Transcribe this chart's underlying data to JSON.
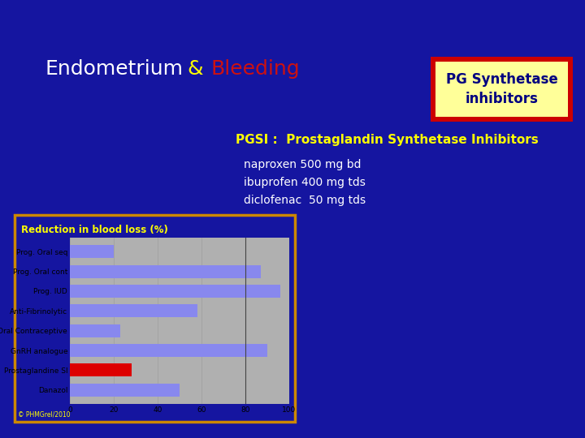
{
  "bg_color": "#1515a0",
  "title_endometrium": "Endometrium",
  "title_and": "&",
  "title_bleeding": "Bleeding",
  "title_color_endometrium": "#ffffff",
  "title_color_and": "#ffff00",
  "title_color_bleeding": "#cc1111",
  "pgsi_label": "PGSI :  Prostaglandin Synthetase Inhibitors",
  "pgsi_color": "#ffff00",
  "drugs_text": "naproxen 500 mg bd\nibuprofen 400 mg tds\ndiclofenac  50 mg tds",
  "drugs_color": "#ffffff",
  "pg_synthetase_text": "PG Synthetase\ninhibitors",
  "pg_text_color": "#000080",
  "pg_box_bg": "#ffff99",
  "pg_box_border_outer": "#cc0000",
  "chart_title": "Reduction in blood loss (%)",
  "chart_title_color": "#ffff00",
  "categories": [
    "Prog. Oral seq",
    "Prog. Oral cont",
    "Prog. IUD",
    "Anti-Fibrinolytic",
    "Oral Contraceptive",
    "GnRH analogue",
    "Prostaglandine SI",
    "Danazol"
  ],
  "values": [
    20,
    87,
    96,
    58,
    23,
    90,
    28,
    50
  ],
  "bar_colors": [
    "#8888ee",
    "#8888ee",
    "#8888ee",
    "#8888ee",
    "#8888ee",
    "#8888ee",
    "#dd0000",
    "#8888ee"
  ],
  "xlim": [
    0,
    100
  ],
  "xticks": [
    0,
    20,
    40,
    60,
    80,
    100
  ],
  "chart_bg": "#b0b0b0",
  "chart_border": "#cc8800",
  "copyright": "© PHMGrel/2010",
  "vline_x": 80,
  "title_fontsize": 18,
  "pgsi_fontsize": 11,
  "drugs_fontsize": 10,
  "pg_fontsize": 12
}
